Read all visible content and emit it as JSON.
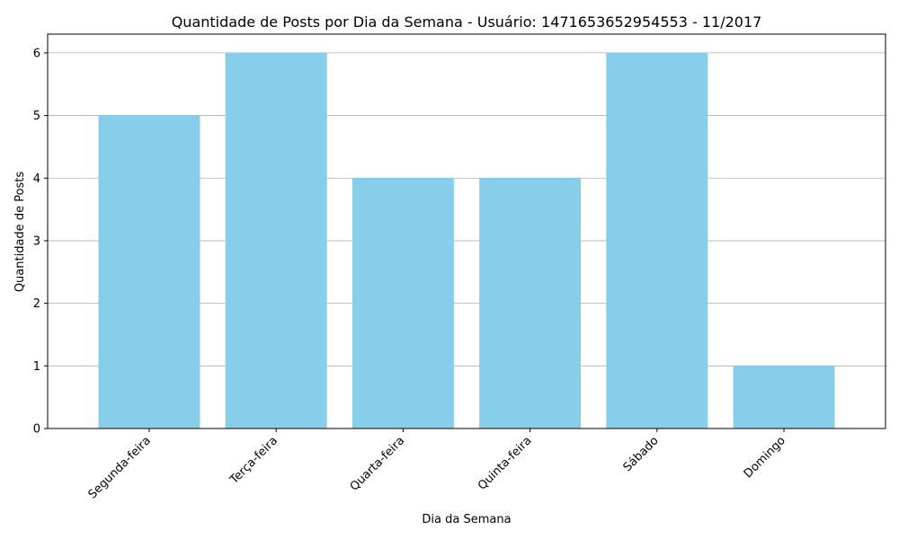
{
  "chart_data": {
    "type": "bar",
    "title": "Quantidade de Posts por Dia da Semana - Usuário: 1471653652954553 - 11/2017",
    "xlabel": "Dia da Semana",
    "ylabel": "Quantidade de Posts",
    "categories": [
      "Segunda-feira",
      "Terça-feira",
      "Quarta-feira",
      "Quinta-feira",
      "Sábado",
      "Domingo"
    ],
    "values": [
      5,
      6,
      4,
      4,
      6,
      1
    ],
    "ylim": [
      0,
      6.3
    ],
    "yticks": [
      0,
      1,
      2,
      3,
      4,
      5,
      6
    ],
    "grid": "y-axis",
    "legend": "none",
    "colors": {
      "bar": "#87ceeb",
      "grid": "#b0b0b0",
      "axis": "#000000"
    }
  }
}
